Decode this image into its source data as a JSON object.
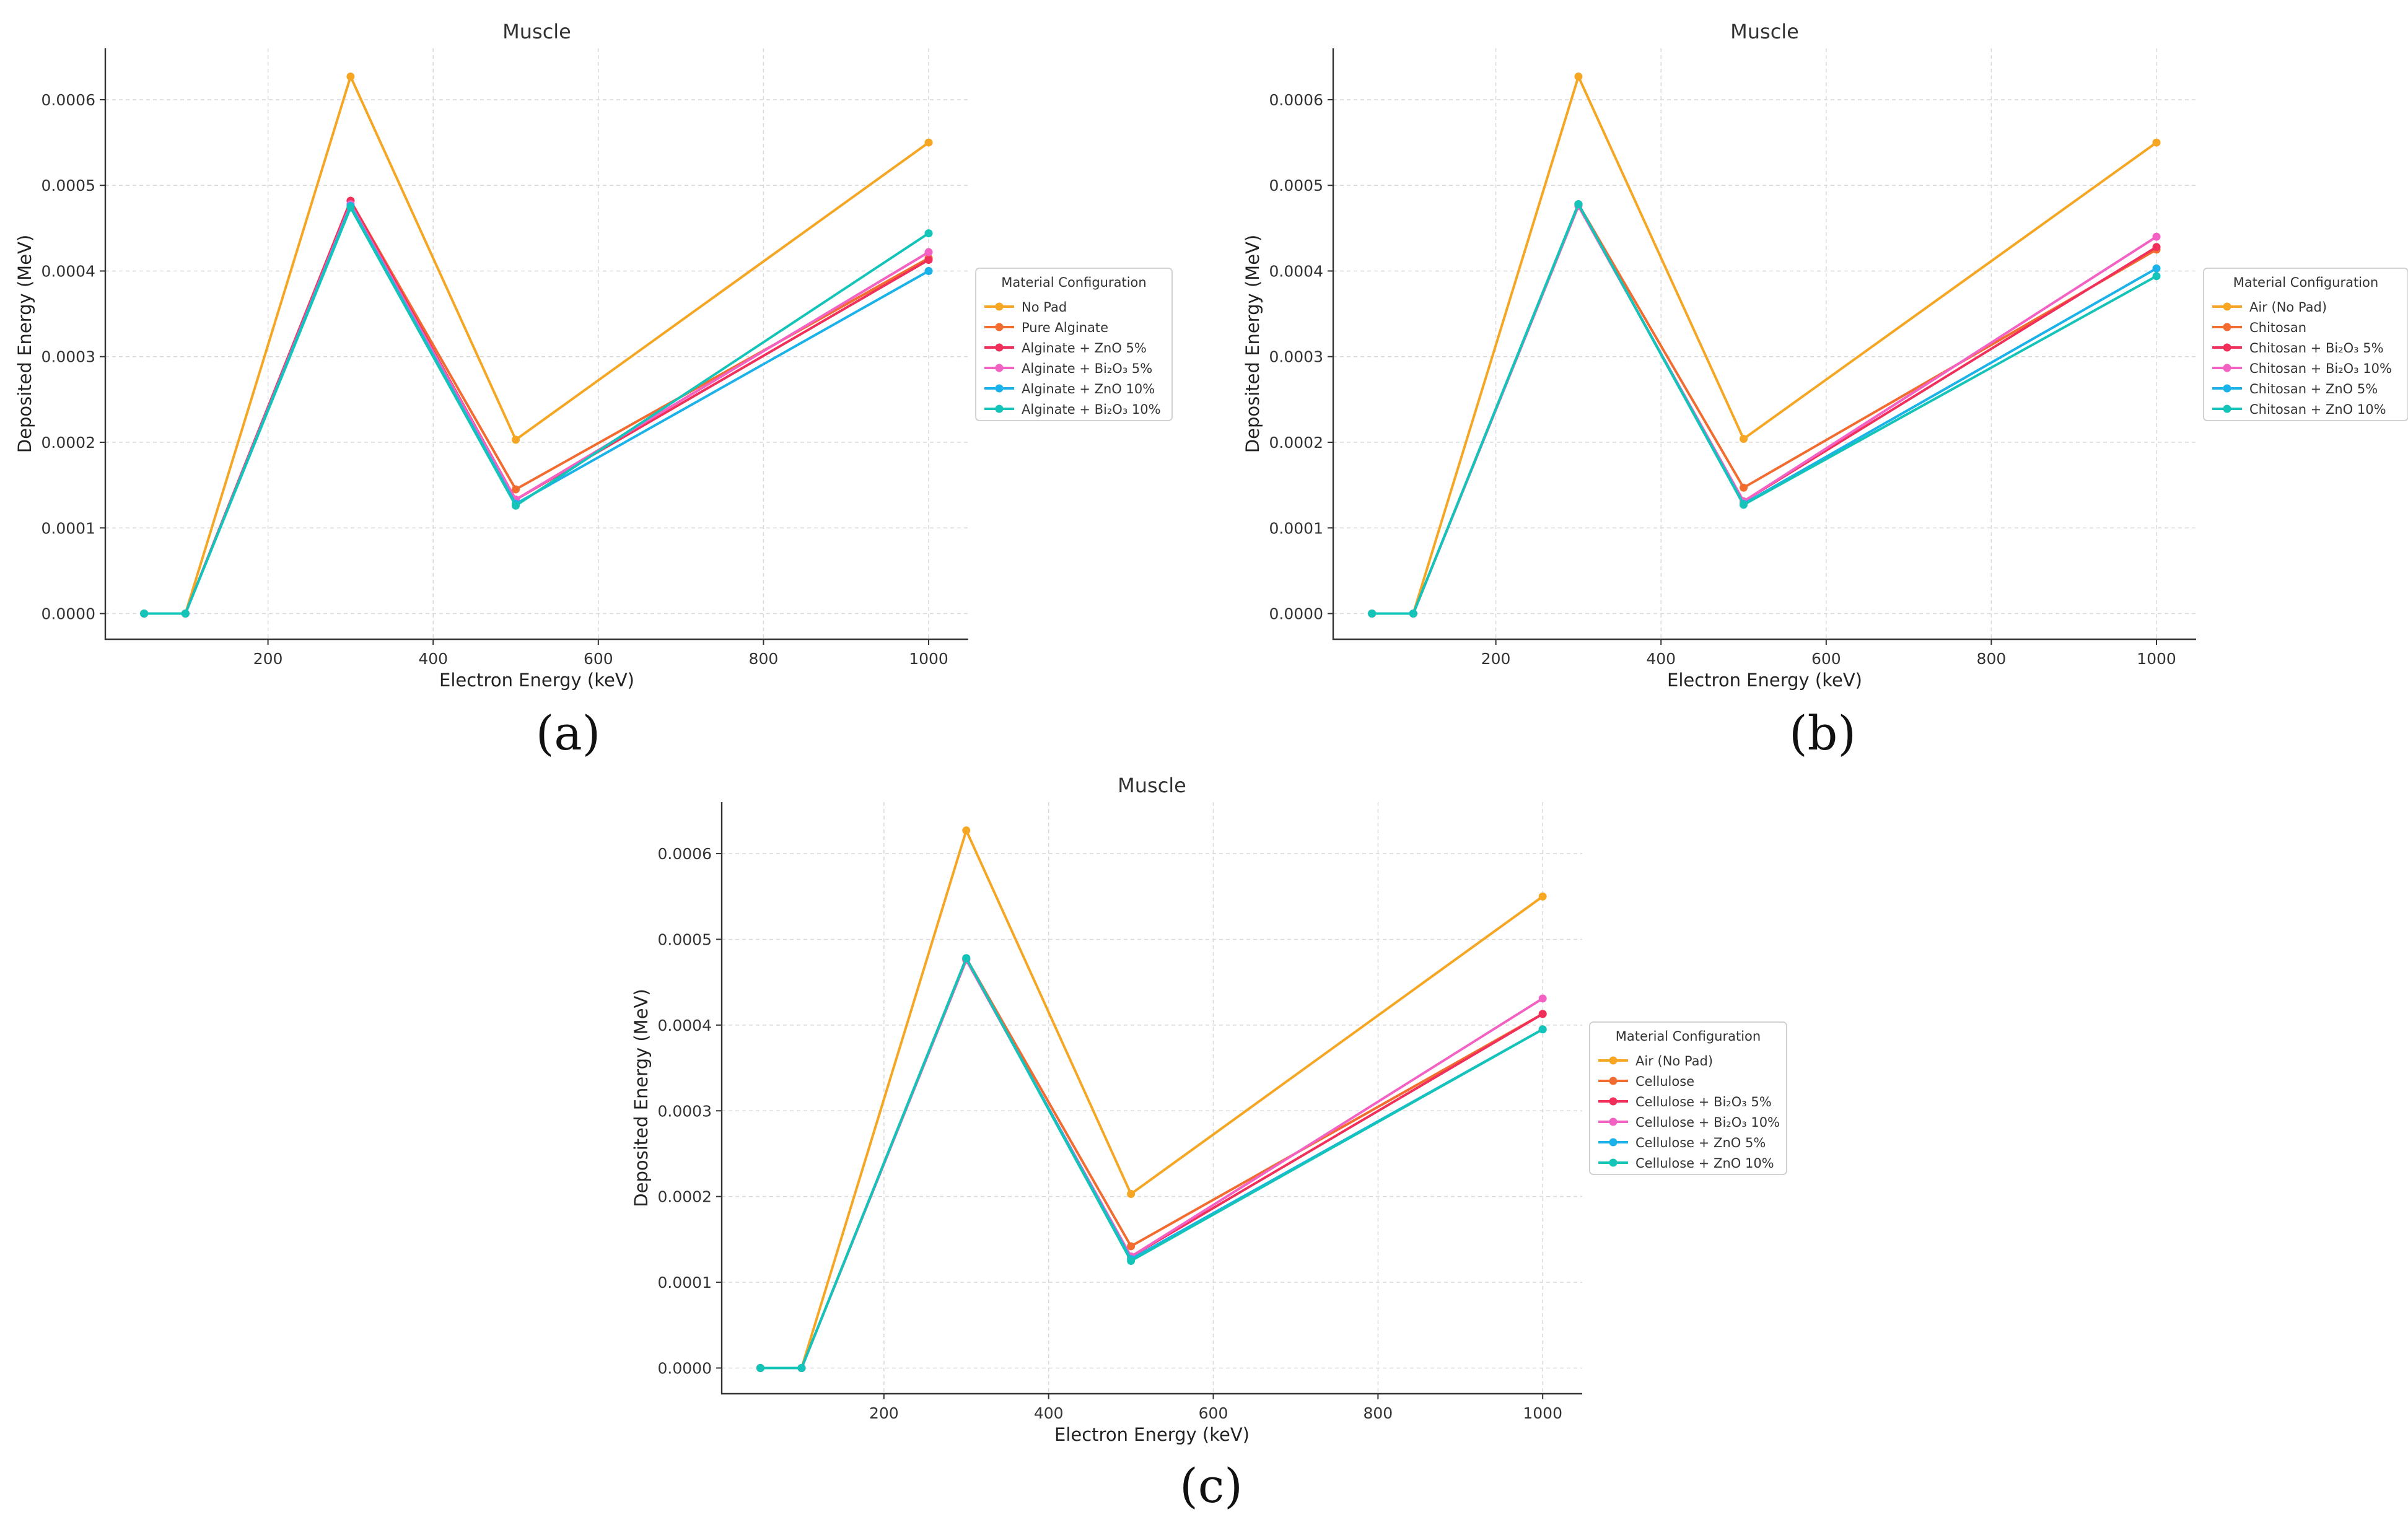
{
  "chart_data": [
    {
      "type": "line",
      "title": "Muscle",
      "xlabel": "Electron Energy (keV)",
      "ylabel": "Deposited Energy (MeV)",
      "caption": "(a)",
      "xlim": [
        3,
        1048
      ],
      "ylim": [
        -3e-05,
        0.00066
      ],
      "xticks": [
        200,
        400,
        600,
        800,
        1000
      ],
      "yticks": [
        0.0,
        0.0001,
        0.0002,
        0.0003,
        0.0004,
        0.0005,
        0.0006
      ],
      "ytick_labels": [
        "0.0000",
        "0.0001",
        "0.0002",
        "0.0003",
        "0.0004",
        "0.0005",
        "0.0006"
      ],
      "grid": true,
      "legend_title": "Material Configuration",
      "legend_position": "center-right",
      "x": [
        50,
        100,
        300,
        500,
        1000
      ],
      "series": [
        {
          "name": "No Pad",
          "color": "#f5a623",
          "values": [
            0.0,
            0.0,
            0.000627,
            0.000203,
            0.00055
          ]
        },
        {
          "name": "Pure Alginate",
          "color": "#f26b2f",
          "values": [
            0.0,
            0.0,
            0.000482,
            0.000145,
            0.000415
          ]
        },
        {
          "name": "Alginate + ZnO 5%",
          "color": "#f0305a",
          "values": [
            0.0,
            0.0,
            0.000482,
            0.000133,
            0.000413
          ]
        },
        {
          "name": "Alginate + Bi₂O₃ 5%",
          "color": "#f361c3",
          "values": [
            0.0,
            0.0,
            0.000478,
            0.000133,
            0.000422
          ]
        },
        {
          "name": "Alginate + ZnO 10%",
          "color": "#1ab2e8",
          "values": [
            0.0,
            0.0,
            0.000476,
            0.000128,
            0.0004
          ]
        },
        {
          "name": "Alginate + Bi₂O₃ 10%",
          "color": "#15c4b8",
          "values": [
            0.0,
            0.0,
            0.000474,
            0.000126,
            0.000444
          ]
        }
      ]
    },
    {
      "type": "line",
      "title": "Muscle",
      "xlabel": "Electron Energy (keV)",
      "ylabel": "Deposited Energy (MeV)",
      "caption": "(b)",
      "xlim": [
        3,
        1048
      ],
      "ylim": [
        -3e-05,
        0.00066
      ],
      "xticks": [
        200,
        400,
        600,
        800,
        1000
      ],
      "yticks": [
        0.0,
        0.0001,
        0.0002,
        0.0003,
        0.0004,
        0.0005,
        0.0006
      ],
      "ytick_labels": [
        "0.0000",
        "0.0001",
        "0.0002",
        "0.0003",
        "0.0004",
        "0.0005",
        "0.0006"
      ],
      "grid": true,
      "legend_title": "Material Configuration",
      "legend_position": "center-right",
      "x": [
        50,
        100,
        300,
        500,
        1000
      ],
      "series": [
        {
          "name": "Air (No Pad)",
          "color": "#f5a623",
          "values": [
            0.0,
            0.0,
            0.000627,
            0.000204,
            0.00055
          ]
        },
        {
          "name": "Chitosan",
          "color": "#f26b2f",
          "values": [
            0.0,
            0.0,
            0.000478,
            0.000147,
            0.000425
          ]
        },
        {
          "name": "Chitosan + Bi₂O₃ 5%",
          "color": "#f0305a",
          "values": [
            0.0,
            0.0,
            0.000476,
            0.000131,
            0.000428
          ]
        },
        {
          "name": "Chitosan + Bi₂O₃ 10%",
          "color": "#f361c3",
          "values": [
            0.0,
            0.0,
            0.000476,
            0.000131,
            0.00044
          ]
        },
        {
          "name": "Chitosan + ZnO 5%",
          "color": "#1ab2e8",
          "values": [
            0.0,
            0.0,
            0.000478,
            0.000128,
            0.000403
          ]
        },
        {
          "name": "Chitosan + ZnO 10%",
          "color": "#15c4b8",
          "values": [
            0.0,
            0.0,
            0.000478,
            0.000127,
            0.000394
          ]
        }
      ]
    },
    {
      "type": "line",
      "title": "Muscle",
      "xlabel": "Electron Energy (keV)",
      "ylabel": "Deposited Energy (MeV)",
      "caption": "(c)",
      "xlim": [
        3,
        1048
      ],
      "ylim": [
        -3e-05,
        0.00066
      ],
      "xticks": [
        200,
        400,
        600,
        800,
        1000
      ],
      "yticks": [
        0.0,
        0.0001,
        0.0002,
        0.0003,
        0.0004,
        0.0005,
        0.0006
      ],
      "ytick_labels": [
        "0.0000",
        "0.0001",
        "0.0002",
        "0.0003",
        "0.0004",
        "0.0005",
        "0.0006"
      ],
      "grid": true,
      "legend_title": "Material Configuration",
      "legend_position": "center-right",
      "x": [
        50,
        100,
        300,
        500,
        1000
      ],
      "series": [
        {
          "name": "Air (No Pad)",
          "color": "#f5a623",
          "values": [
            0.0,
            0.0,
            0.000627,
            0.000203,
            0.00055
          ]
        },
        {
          "name": "Cellulose",
          "color": "#f26b2f",
          "values": [
            0.0,
            0.0,
            0.000478,
            0.000142,
            0.000413
          ]
        },
        {
          "name": "Cellulose + Bi₂O₃ 5%",
          "color": "#f0305a",
          "values": [
            0.0,
            0.0,
            0.000476,
            0.00013,
            0.000413
          ]
        },
        {
          "name": "Cellulose + Bi₂O₃ 10%",
          "color": "#f361c3",
          "values": [
            0.0,
            0.0,
            0.000476,
            0.00013,
            0.000431
          ]
        },
        {
          "name": "Cellulose + ZnO 5%",
          "color": "#1ab2e8",
          "values": [
            0.0,
            0.0,
            0.000478,
            0.000127,
            0.000395
          ]
        },
        {
          "name": "Cellulose + ZnO 10%",
          "color": "#15c4b8",
          "values": [
            0.0,
            0.0,
            0.000478,
            0.000125,
            0.000395
          ]
        }
      ]
    }
  ]
}
